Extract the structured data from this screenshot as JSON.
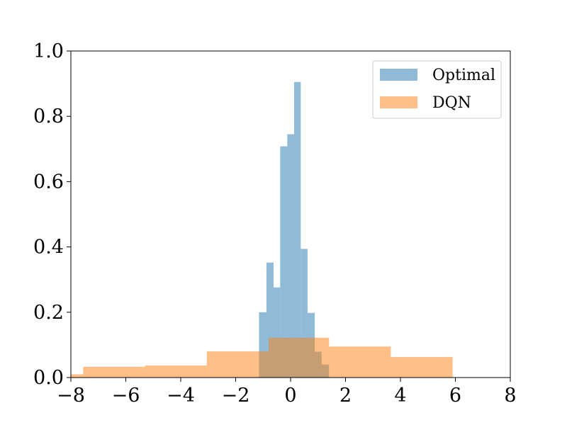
{
  "chart_data": {
    "type": "histogram",
    "xlim": [
      -8,
      8
    ],
    "ylim": [
      0,
      1.0
    ],
    "x_ticks": [
      -8,
      -6,
      -4,
      -2,
      0,
      2,
      4,
      6,
      8
    ],
    "x_tick_labels": [
      "−8",
      "−6",
      "−4",
      "−2",
      "0",
      "2",
      "4",
      "6",
      "8"
    ],
    "y_ticks": [
      0.0,
      0.2,
      0.4,
      0.6,
      0.8,
      1.0
    ],
    "y_tick_labels": [
      "0.0",
      "0.2",
      "0.4",
      "0.6",
      "0.8",
      "1.0"
    ],
    "grid": false,
    "legend_position": "top-right",
    "legend": {
      "series_0": "Optimal",
      "series_1": "DQN"
    },
    "series": [
      {
        "name": "Optimal",
        "color": "#1f77b4",
        "opacity": 0.5,
        "bins": [
          {
            "x0": -1.15,
            "x1": -0.88,
            "y": 0.2
          },
          {
            "x0": -0.88,
            "x1": -0.62,
            "y": 0.352
          },
          {
            "x0": -0.62,
            "x1": -0.38,
            "y": 0.276
          },
          {
            "x0": -0.38,
            "x1": -0.12,
            "y": 0.708
          },
          {
            "x0": -0.12,
            "x1": 0.13,
            "y": 0.745
          },
          {
            "x0": 0.13,
            "x1": 0.37,
            "y": 0.905
          },
          {
            "x0": 0.37,
            "x1": 0.62,
            "y": 0.394
          },
          {
            "x0": 0.62,
            "x1": 0.88,
            "y": 0.198
          },
          {
            "x0": 0.88,
            "x1": 1.13,
            "y": 0.079
          },
          {
            "x0": 1.13,
            "x1": 1.4,
            "y": 0.04
          }
        ]
      },
      {
        "name": "DQN",
        "color": "#ff7f0e",
        "opacity": 0.5,
        "bins": [
          {
            "x0": -8.0,
            "x1": -7.55,
            "y": 0.01
          },
          {
            "x0": -7.55,
            "x1": -5.3,
            "y": 0.033
          },
          {
            "x0": -5.3,
            "x1": -3.05,
            "y": 0.037
          },
          {
            "x0": -3.05,
            "x1": -0.8,
            "y": 0.08
          },
          {
            "x0": -0.8,
            "x1": 1.4,
            "y": 0.122
          },
          {
            "x0": 1.4,
            "x1": 3.65,
            "y": 0.095
          },
          {
            "x0": 3.65,
            "x1": 5.9,
            "y": 0.063
          }
        ]
      }
    ]
  }
}
